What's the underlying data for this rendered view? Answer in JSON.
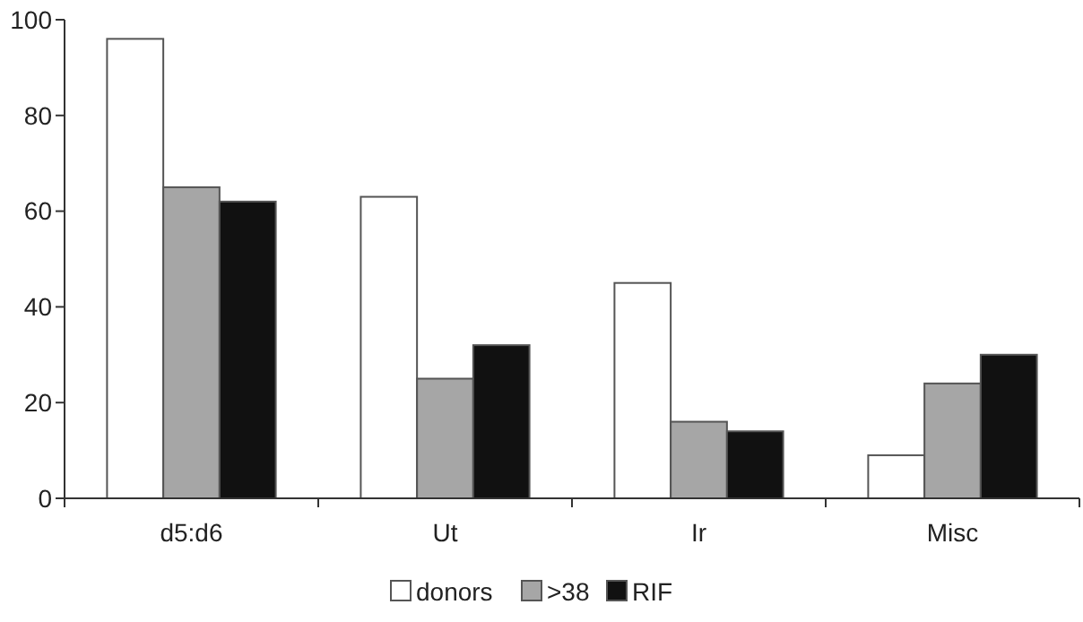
{
  "chart_data": {
    "type": "bar",
    "categories": [
      "d5:d6",
      "Ut",
      "Ir",
      "Misc"
    ],
    "series": [
      {
        "name": "donors",
        "color": "#ffffff",
        "values": [
          96,
          63,
          45,
          9
        ]
      },
      {
        "name": ">38",
        "color": "#a6a6a6",
        "values": [
          65,
          25,
          16,
          24
        ]
      },
      {
        "name": "RIF",
        "color": "#111111",
        "values": [
          62,
          32,
          14,
          30
        ]
      }
    ],
    "ylim": [
      0,
      100
    ],
    "yticks": [
      0,
      20,
      40,
      60,
      80,
      100
    ],
    "grid": false,
    "legend": "bottom"
  }
}
